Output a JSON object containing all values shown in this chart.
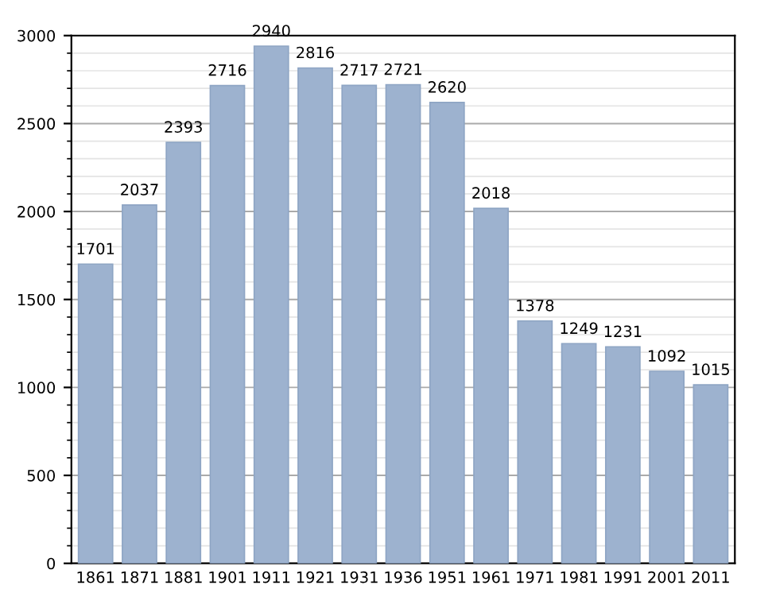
{
  "chart_data": {
    "type": "bar",
    "categories": [
      "1861",
      "1871",
      "1881",
      "1901",
      "1911",
      "1921",
      "1931",
      "1936",
      "1951",
      "1961",
      "1971",
      "1981",
      "1991",
      "2001",
      "2011"
    ],
    "values": [
      1701,
      2037,
      2393,
      2716,
      2940,
      2816,
      2717,
      2721,
      2620,
      2018,
      1378,
      1249,
      1231,
      1092,
      1015
    ],
    "color": "#9db2cf",
    "ylim": [
      0,
      3000
    ],
    "yticks": [
      0,
      500,
      1000,
      1500,
      2000,
      2500,
      3000
    ],
    "grid": "y",
    "data_labels": true
  }
}
